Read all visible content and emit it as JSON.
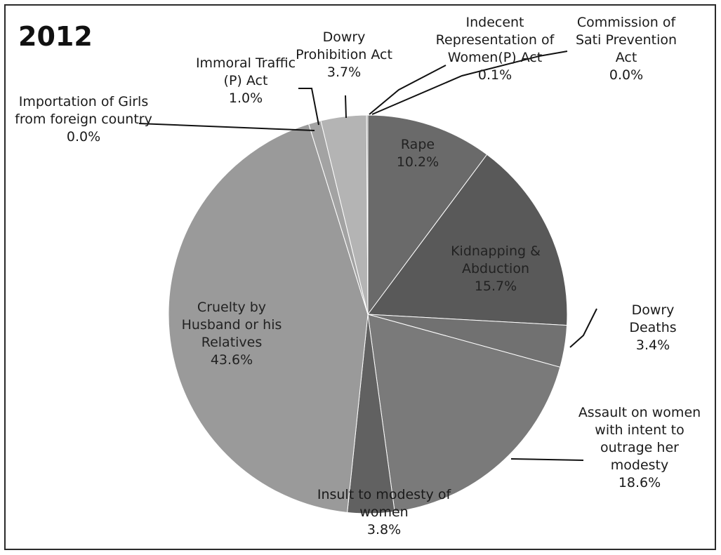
{
  "chart_data": {
    "type": "pie",
    "title": "2012",
    "slices": [
      {
        "name": "Rape",
        "value": 10.2,
        "label": "10.2%",
        "color": "#6a6a6a"
      },
      {
        "name": "Kidnapping & Abduction",
        "value": 15.7,
        "label": "15.7%",
        "color": "#595959"
      },
      {
        "name": "Dowry Deaths",
        "value": 3.4,
        "label": "3.4%",
        "color": "#717171"
      },
      {
        "name": "Assault on women with intent to outrage her modesty",
        "value": 18.6,
        "label": "18.6%",
        "color": "#7a7a7a"
      },
      {
        "name": "Insult to modesty of women",
        "value": 3.8,
        "label": "3.8%",
        "color": "#616161"
      },
      {
        "name": "Cruelty by Husband or his Relatives",
        "value": 43.6,
        "label": "43.6%",
        "color": "#9a9a9a"
      },
      {
        "name": "Importation of Girls from foreign country",
        "value": 0.0,
        "label": "0.0%",
        "color": "#8a8a8a"
      },
      {
        "name": "Immoral Traffic (P) Act",
        "value": 1.0,
        "label": "1.0%",
        "color": "#a3a3a3"
      },
      {
        "name": "Dowry Prohibition Act",
        "value": 3.7,
        "label": "3.7%",
        "color": "#b4b4b4"
      },
      {
        "name": "Indecent Representation of Women(P) Act",
        "value": 0.1,
        "label": "0.1%",
        "color": "#888888"
      },
      {
        "name": "Commission of Sati Prevention Act",
        "value": 0.0,
        "label": "0.0%",
        "color": "#777777"
      }
    ],
    "legend": "none"
  }
}
